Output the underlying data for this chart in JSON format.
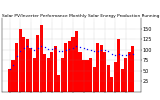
{
  "title": "Solar PV/Inverter Performance Monthly Solar Energy Production Running Average",
  "bar_values": [
    55,
    75,
    115,
    148,
    130,
    125,
    105,
    80,
    135,
    158,
    90,
    80,
    95,
    108,
    40,
    80,
    115,
    120,
    130,
    145,
    95,
    75,
    75,
    80,
    60,
    115,
    110,
    95,
    65,
    35,
    70,
    125,
    55,
    80,
    95,
    108
  ],
  "avg_values": [
    55,
    65,
    85,
    97,
    104,
    108,
    105,
    100,
    104,
    109,
    106,
    101,
    102,
    103,
    98,
    97,
    99,
    102,
    105,
    108,
    107,
    105,
    102,
    100,
    96,
    98,
    100,
    99,
    96,
    91,
    88,
    91,
    88,
    87,
    89,
    91
  ],
  "bar_color": "#ff0000",
  "avg_color": "#0000ff",
  "bg_color": "#ffffff",
  "grid_color": "#888888",
  "ylim": [
    0,
    175
  ],
  "yticks": [
    25,
    50,
    75,
    100,
    125,
    150
  ],
  "ylabel_fontsize": 3.5,
  "title_fontsize": 3.2
}
